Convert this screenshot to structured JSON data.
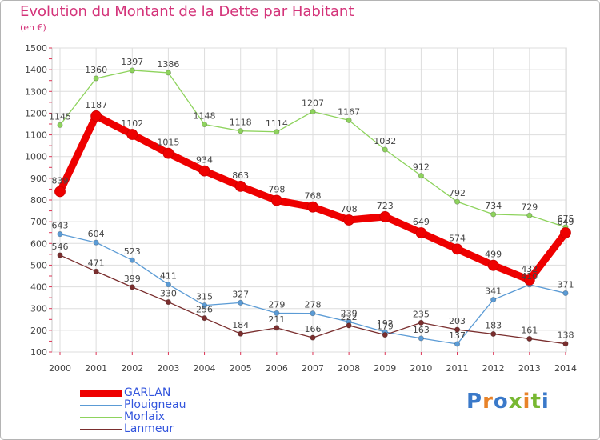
{
  "header": {
    "title": "Evolution du Montant de la Dette par Habitant",
    "subtitle": "(en €)"
  },
  "logo": {
    "text": "Proxiti",
    "colors": [
      "#3a79c9",
      "#e8832a",
      "#3a79c9",
      "#78b832",
      "#e8832a",
      "#78b832",
      "#3a79c9"
    ]
  },
  "chart_data": {
    "type": "line",
    "title": "Evolution du Montant de la Dette par Habitant",
    "subtitle": "(en €)",
    "xlabel": "",
    "ylabel": "",
    "categories": [
      "2000",
      "2001",
      "2002",
      "2003",
      "2004",
      "2005",
      "2006",
      "2007",
      "2008",
      "2009",
      "2010",
      "2011",
      "2012",
      "2013",
      "2014"
    ],
    "ylim": [
      100,
      1500
    ],
    "yticks": [
      100,
      200,
      300,
      400,
      500,
      600,
      700,
      800,
      900,
      1000,
      1100,
      1200,
      1300,
      1400,
      1500
    ],
    "grid": true,
    "legend_position": "bottom-left",
    "series": [
      {
        "name": "GARLAN",
        "color": "#ee0000",
        "values": [
          839,
          1187,
          1102,
          1015,
          934,
          863,
          798,
          768,
          708,
          723,
          649,
          574,
          499,
          432,
          649
        ]
      },
      {
        "name": "Plouigneau",
        "color": "#5b9bd5",
        "values": [
          643,
          604,
          523,
          411,
          315,
          327,
          279,
          278,
          239,
          192,
          163,
          137,
          341,
          410,
          371
        ]
      },
      {
        "name": "Morlaix",
        "color": "#8ed35d",
        "values": [
          1145,
          1360,
          1397,
          1386,
          1148,
          1118,
          1114,
          1207,
          1167,
          1032,
          912,
          792,
          734,
          729,
          675
        ]
      },
      {
        "name": "Lanmeur",
        "color": "#7a2e2e",
        "values": [
          546,
          471,
          399,
          330,
          256,
          184,
          211,
          166,
          222,
          179,
          235,
          203,
          183,
          161,
          138
        ]
      }
    ]
  }
}
